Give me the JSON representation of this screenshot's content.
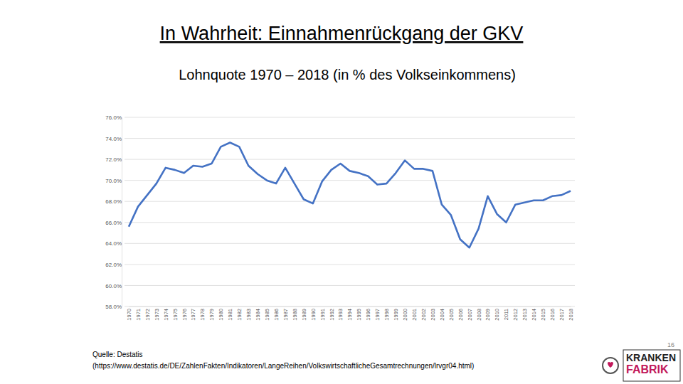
{
  "chart_data": {
    "type": "line",
    "title": "In Wahrheit: Einnahmenrückgang der GKV",
    "subtitle": "Lohnquote 1970 – 2018 (in % des Volkseinkommens)",
    "categories": [
      "1970",
      "1971",
      "1972",
      "1973",
      "1974",
      "1975",
      "1976",
      "1977",
      "1978",
      "1979",
      "1980",
      "1981",
      "1982",
      "1983",
      "1984",
      "1985",
      "1986",
      "1987",
      "1988",
      "1989",
      "1990",
      "1991",
      "1992",
      "1993",
      "1994",
      "1995",
      "1996",
      "1997",
      "1998",
      "1999",
      "2000",
      "2001",
      "2002",
      "2003",
      "2004",
      "2005",
      "2006",
      "2007",
      "2008",
      "2009",
      "2010",
      "2011",
      "2012",
      "2013",
      "2014",
      "2015",
      "2016",
      "2017",
      "2018"
    ],
    "values": [
      65.6,
      67.5,
      68.6,
      69.7,
      71.2,
      71.0,
      70.7,
      71.4,
      71.3,
      71.6,
      73.2,
      73.6,
      73.2,
      71.4,
      70.6,
      70.0,
      69.7,
      71.2,
      69.7,
      68.2,
      67.8,
      69.9,
      71.0,
      71.6,
      70.9,
      70.7,
      70.4,
      69.6,
      69.7,
      70.7,
      71.9,
      71.1,
      71.1,
      70.9,
      67.7,
      66.7,
      64.4,
      63.6,
      65.4,
      68.5,
      66.8,
      66.0,
      67.7,
      67.9,
      68.1,
      68.1,
      68.5,
      68.6,
      69.0
    ],
    "color": "#4472c4",
    "ylim": [
      58,
      76
    ],
    "yticks": [
      {
        "value": 58,
        "label": "58.0%"
      },
      {
        "value": 60,
        "label": "60.0%"
      },
      {
        "value": 62,
        "label": "62.0%"
      },
      {
        "value": 64,
        "label": "64.0%"
      },
      {
        "value": 66,
        "label": "66.0%"
      },
      {
        "value": 68,
        "label": "68.0%"
      },
      {
        "value": 70,
        "label": "70.0%"
      },
      {
        "value": 72,
        "label": "72.0%"
      },
      {
        "value": 74,
        "label": "74.0%"
      },
      {
        "value": 76,
        "label": "76.0%"
      }
    ],
    "grid": true
  },
  "footer": {
    "source": [
      "Quelle: Destatis",
      "(https://www.destatis.de/DE/ZahlenFakten/Indikatoren/LangeReihen/VolkswirtschaftlicheGesamtrechnungen/lrvgr04.html)"
    ],
    "page_number": "16",
    "logo": [
      "KRANKEN",
      "FABRIK"
    ]
  }
}
